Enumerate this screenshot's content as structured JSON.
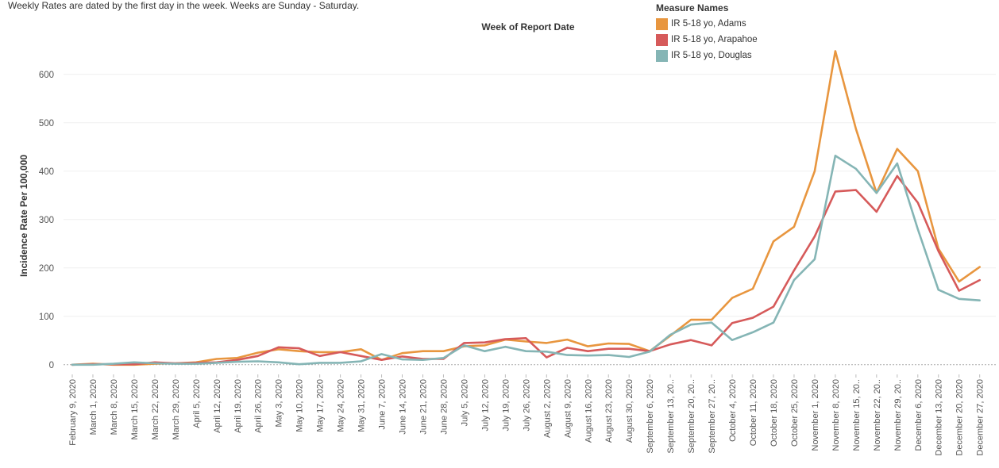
{
  "note": "Weekly Rates are dated by the first day in the week. Weeks are Sunday - Saturday.",
  "chart_data": {
    "type": "line",
    "title": "",
    "xlabel": "Week of Report Date",
    "ylabel": "Incidence Rate Per 100,000",
    "ylim": [
      -20,
      680
    ],
    "yticks": [
      0,
      100,
      200,
      300,
      400,
      500,
      600
    ],
    "legend_title": "Measure Names",
    "legend_position": "top-right",
    "categories": [
      "February 9, 2020",
      "March 1, 2020",
      "March 8, 2020",
      "March 15, 2020",
      "March 22, 2020",
      "March 29, 2020",
      "April 5, 2020",
      "April 12, 2020",
      "April 19, 2020",
      "April 26, 2020",
      "May 3, 2020",
      "May 10, 2020",
      "May 17, 2020",
      "May 24, 2020",
      "May 31, 2020",
      "June 7, 2020",
      "June 14, 2020",
      "June 21, 2020",
      "June 28, 2020",
      "July 5, 2020",
      "July 12, 2020",
      "July 19, 2020",
      "July 26, 2020",
      "August 2, 2020",
      "August 9, 2020",
      "August 16, 2020",
      "August 23, 2020",
      "August 30, 2020",
      "September 6, 2020",
      "September 13, 20..",
      "September 20, 20..",
      "September 27, 20..",
      "October 4, 2020",
      "October 11, 2020",
      "October 18, 2020",
      "October 25, 2020",
      "November 1, 2020",
      "November 8, 2020",
      "November 15, 20..",
      "November 22, 20..",
      "November 29, 20..",
      "December 6, 2020",
      "December 13, 2020",
      "December 20, 2020",
      "December 27, 2020"
    ],
    "series": [
      {
        "name": "IR 5-18 yo, Adams",
        "color": "#e8963f",
        "values": [
          0,
          2,
          0,
          0,
          2,
          3,
          5,
          12,
          14,
          25,
          32,
          28,
          26,
          26,
          32,
          10,
          24,
          28,
          28,
          38,
          40,
          52,
          48,
          45,
          52,
          38,
          44,
          43,
          28,
          60,
          93,
          93,
          138,
          157,
          255,
          285,
          400,
          648,
          487,
          355,
          446,
          400,
          240,
          172,
          202
        ]
      },
      {
        "name": "IR 5-18 yo, Arapahoe",
        "color": "#d65a5a",
        "values": [
          0,
          1,
          1,
          1,
          5,
          3,
          4,
          5,
          10,
          18,
          36,
          34,
          18,
          26,
          18,
          10,
          17,
          12,
          12,
          45,
          46,
          53,
          55,
          15,
          35,
          28,
          33,
          33,
          28,
          42,
          51,
          40,
          86,
          97,
          120,
          195,
          265,
          358,
          361,
          316,
          390,
          335,
          235,
          153,
          175
        ]
      },
      {
        "name": "IR 5-18 yo, Douglas",
        "color": "#85b5b5",
        "values": [
          0,
          0,
          2,
          5,
          3,
          2,
          2,
          4,
          6,
          7,
          5,
          1,
          4,
          4,
          7,
          22,
          11,
          10,
          14,
          40,
          28,
          37,
          28,
          27,
          20,
          19,
          20,
          16,
          27,
          62,
          83,
          87,
          51,
          67,
          87,
          175,
          218,
          432,
          405,
          355,
          416,
          280,
          155,
          136,
          133
        ]
      }
    ]
  }
}
